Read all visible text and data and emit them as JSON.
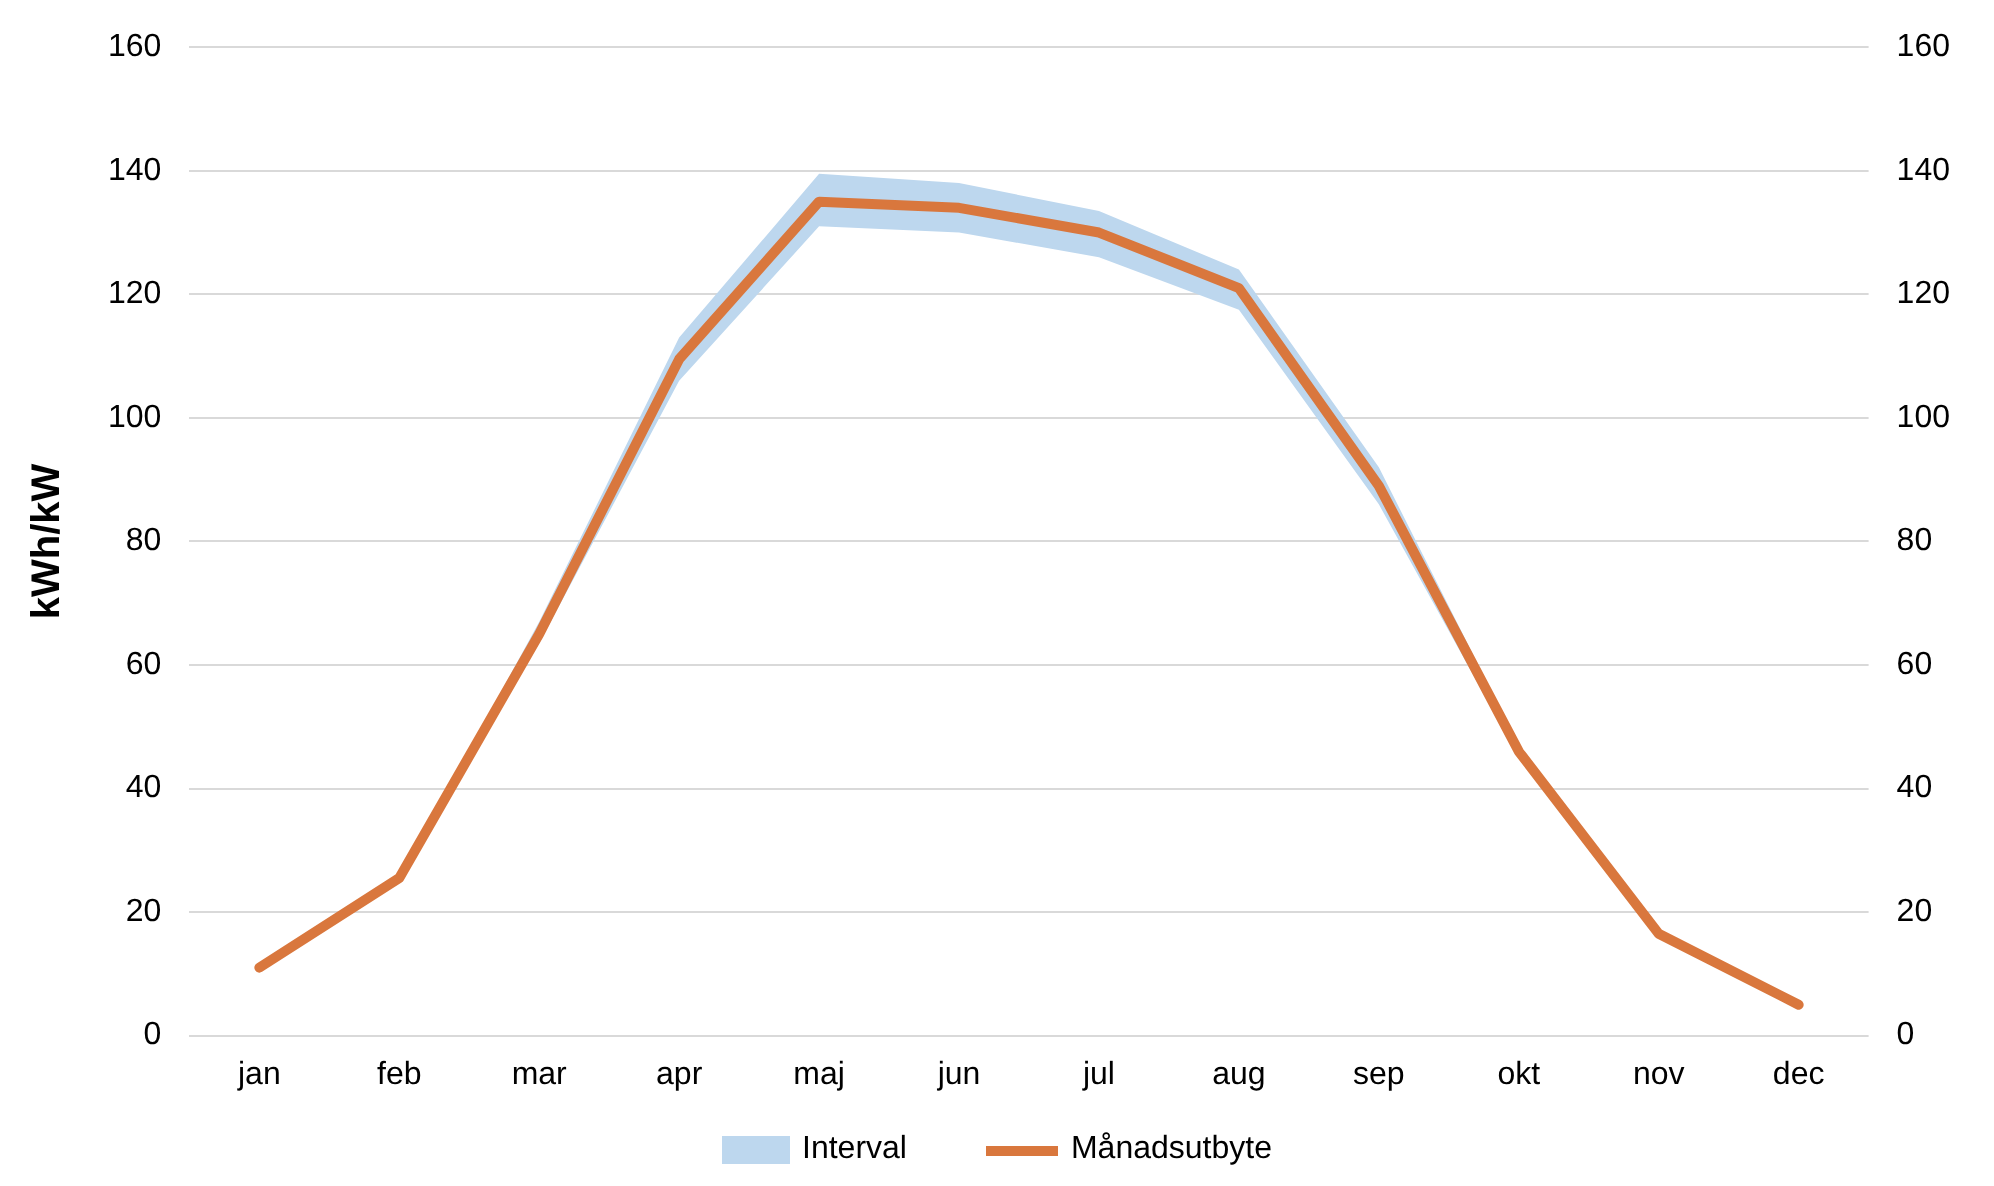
{
  "chart_data": {
    "type": "line",
    "ylabel": "kWh/kW",
    "categories": [
      "jan",
      "feb",
      "mar",
      "apr",
      "maj",
      "jun",
      "jul",
      "aug",
      "sep",
      "okt",
      "nov",
      "dec"
    ],
    "series": [
      {
        "name": "Månadsutbyte",
        "color": "#d9773d",
        "values": [
          11,
          25.5,
          65,
          109.5,
          135,
          134,
          130,
          121,
          89,
          46,
          16.5,
          5
        ],
        "lower": [
          11,
          25.5,
          63.5,
          106,
          131,
          130,
          126,
          117.5,
          86,
          45,
          16.5,
          5
        ],
        "upper": [
          11,
          25.5,
          67,
          113,
          139.5,
          138,
          133.5,
          124,
          92,
          47,
          16.5,
          5
        ]
      }
    ],
    "annotations": [
      "Interval"
    ],
    "ylim": [
      0,
      160
    ],
    "yticks": [
      0,
      20,
      40,
      60,
      80,
      100,
      120,
      140,
      160
    ],
    "y2lim": [
      0,
      160
    ],
    "y2ticks": [
      0,
      20,
      40,
      60,
      80,
      100,
      120,
      140,
      160
    ],
    "grid": "y",
    "legend": "bottom",
    "marker": "none",
    "line_style": "solid"
  }
}
